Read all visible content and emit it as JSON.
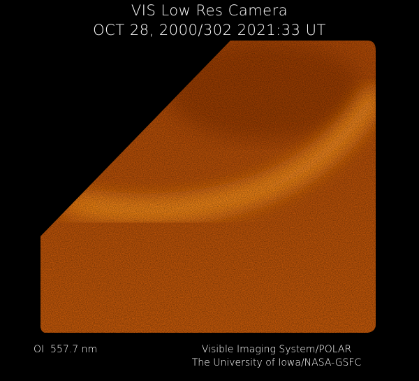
{
  "header": {
    "title": "VIS Low Res Camera",
    "subtitle": "OCT 28, 2000/302 2021:33 UT"
  },
  "footer": {
    "filter": "OI  557.7 nm",
    "credit_line1": "Visible Imaging System/POLAR",
    "credit_line2": "The University of Iowa/NASA-GSFC"
  },
  "colors": {
    "background": "#000000",
    "image_base": "#b04a08",
    "aurora_band": "#f08a1a",
    "text": "#ffffff"
  }
}
